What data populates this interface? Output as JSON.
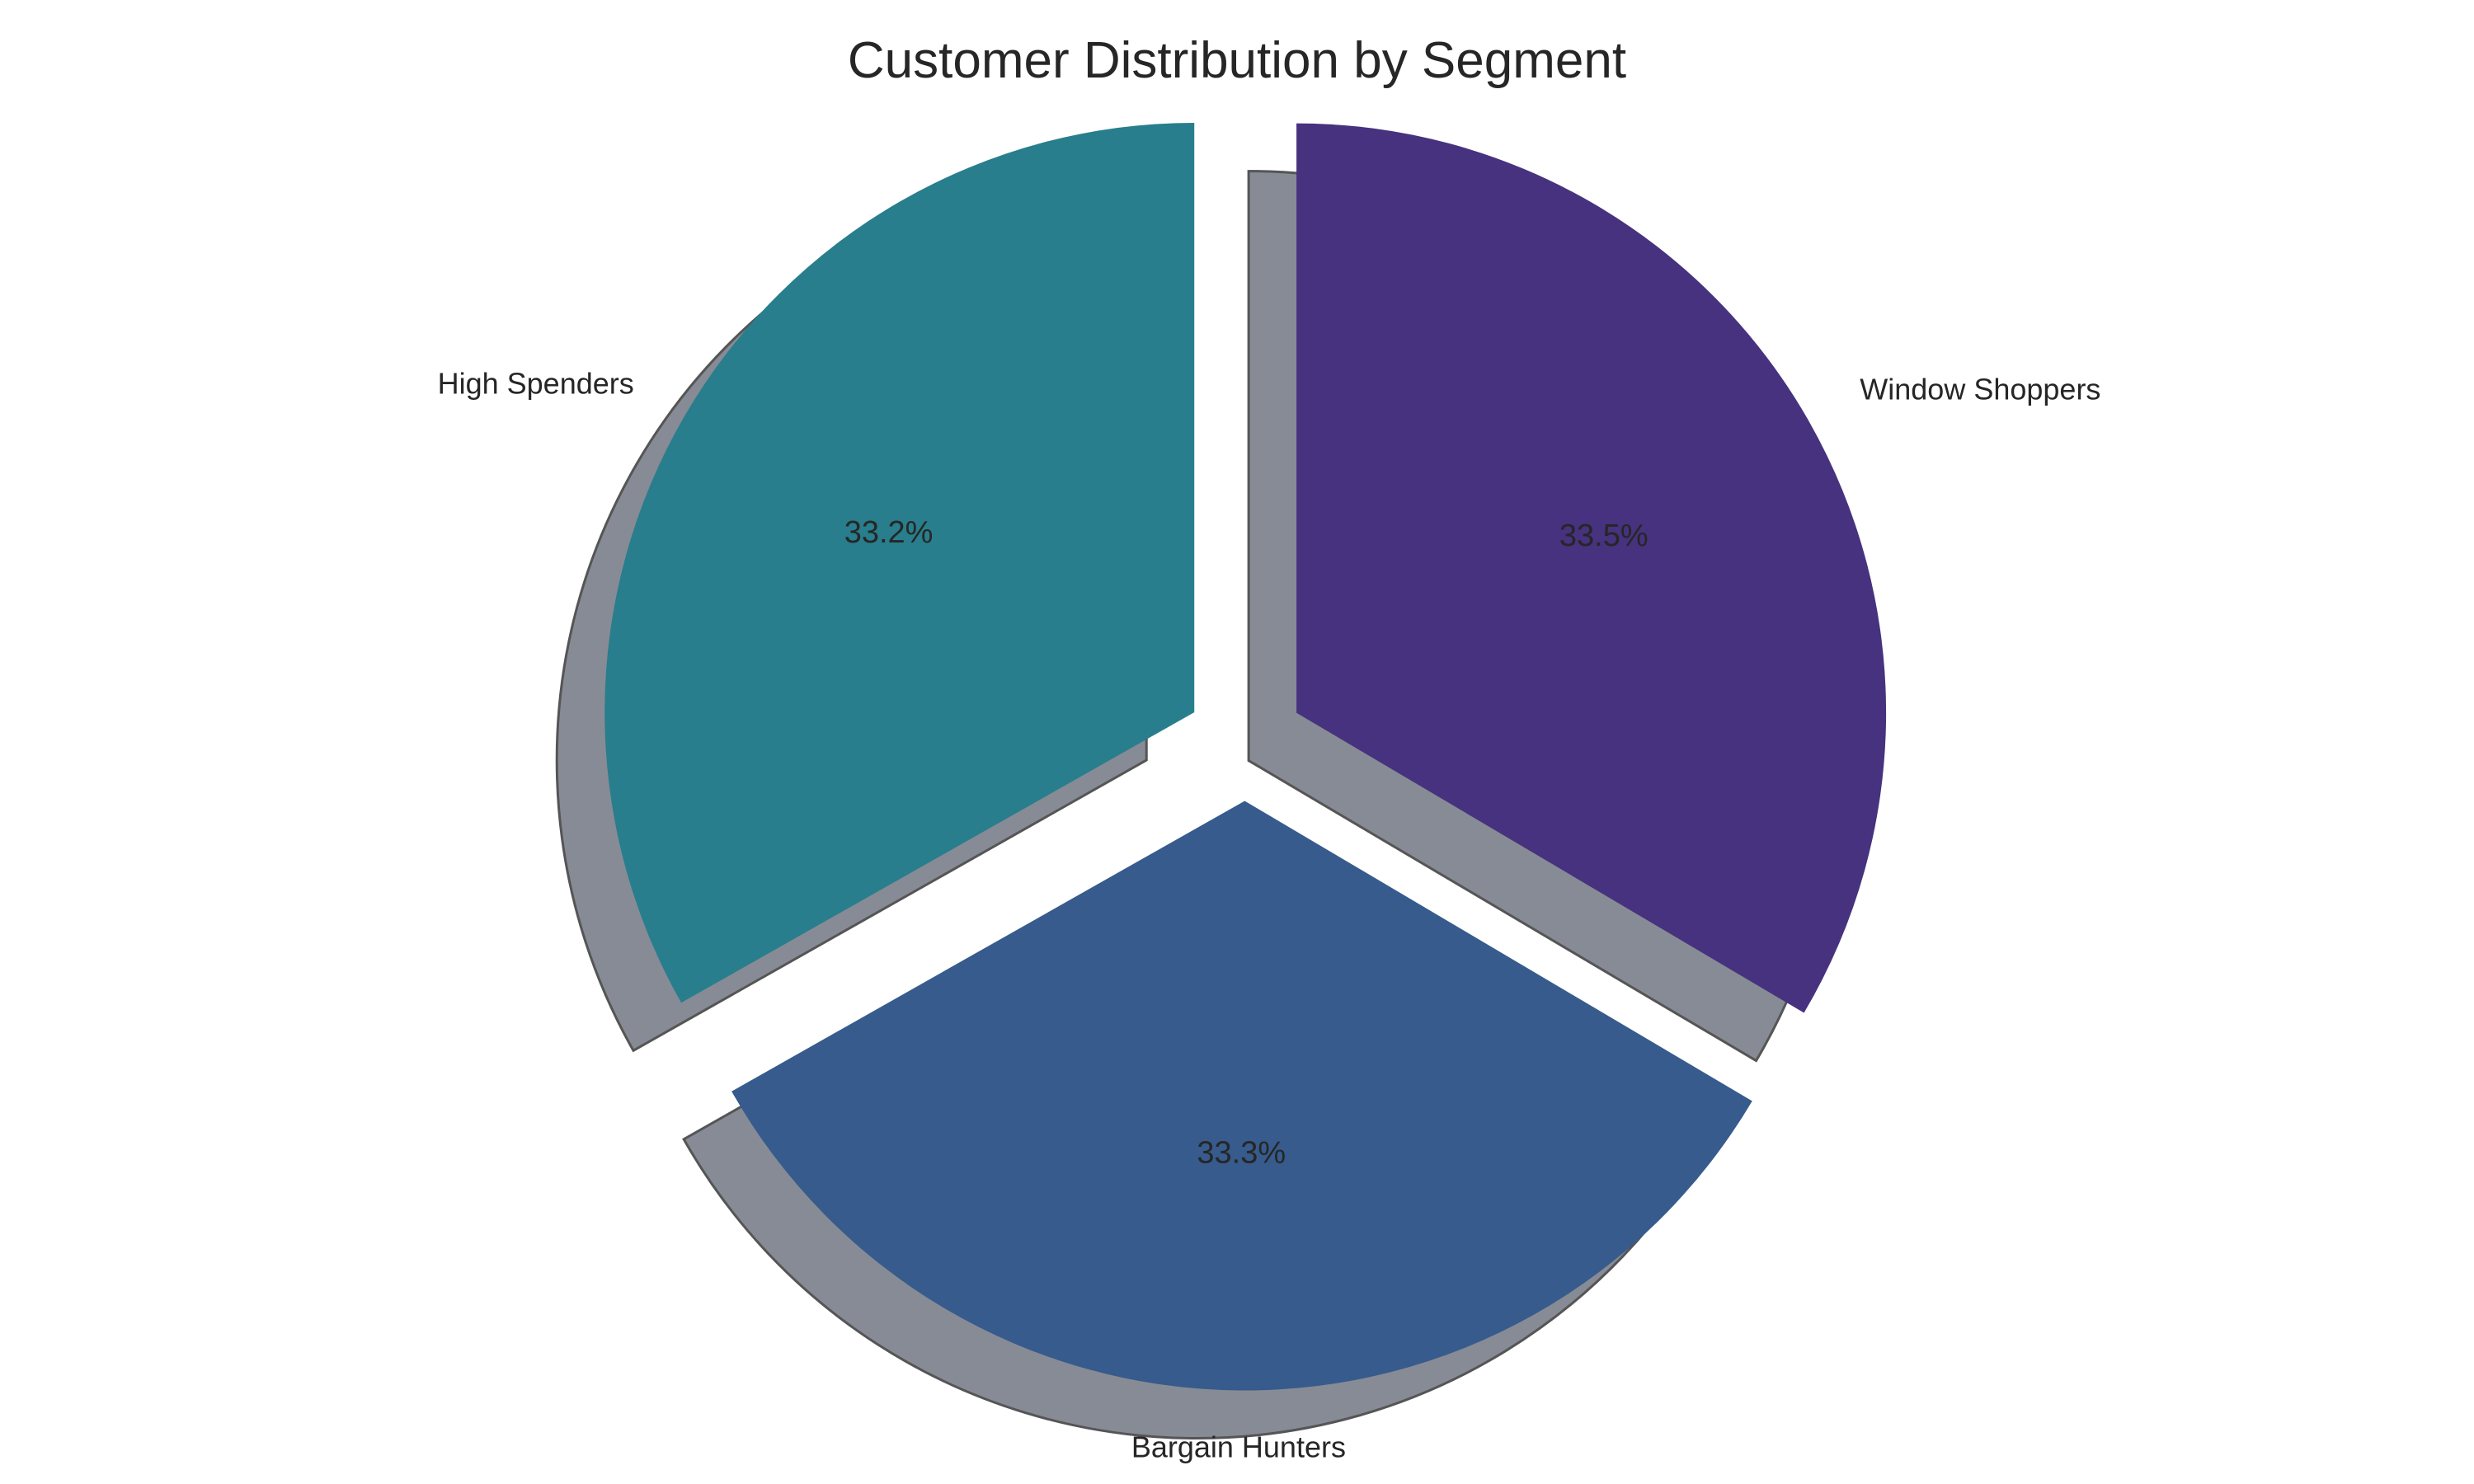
{
  "chart_data": {
    "type": "pie",
    "title": "Customer Distribution by Segment",
    "categories": [
      "High Spenders",
      "Bargain Hunters",
      "Window Shoppers"
    ],
    "values": [
      33.2,
      33.3,
      33.5
    ],
    "value_labels": [
      "33.2%",
      "33.3%",
      "33.5%"
    ],
    "colors": [
      "#287e8c",
      "#365b8c",
      "#46327e"
    ],
    "shadow_color": "#878b95",
    "edge_color": "#555555",
    "start_angle": 90,
    "direction": "counterclockwise-from-top",
    "exploded": true,
    "shadow": true,
    "legend": "none"
  }
}
